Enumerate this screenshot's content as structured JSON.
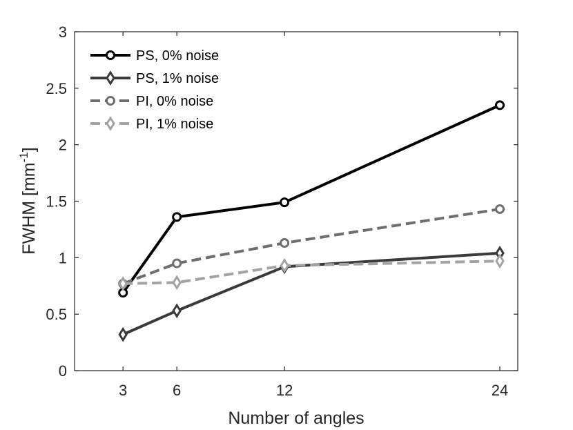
{
  "chart_data": {
    "type": "line",
    "x": [
      3,
      6,
      12,
      24
    ],
    "xlabel": "Number of angles",
    "ylabel": "FWHM [mm",
    "ylabel_superscript": "-1",
    "ylabel_suffix": "]",
    "xlim": [
      0.3,
      25
    ],
    "ylim": [
      0,
      3
    ],
    "xticks": [
      3,
      6,
      12,
      24
    ],
    "yticks": [
      0,
      0.5,
      1,
      1.5,
      2,
      2.5,
      3
    ],
    "ytick_labels": [
      "0",
      "0.5",
      "1",
      "1.5",
      "2",
      "2.5",
      "3"
    ],
    "legend_position": "top-left",
    "series": [
      {
        "name": "PS, 0% noise",
        "values": [
          0.69,
          1.36,
          1.49,
          2.35
        ],
        "color": "#000000",
        "dash": "solid",
        "marker": "circle"
      },
      {
        "name": "PS, 1% noise",
        "values": [
          0.32,
          0.53,
          0.92,
          1.04
        ],
        "color": "#3a3a3a",
        "dash": "solid",
        "marker": "diamond"
      },
      {
        "name": "PI, 0% noise",
        "values": [
          0.77,
          0.95,
          1.13,
          1.43
        ],
        "color": "#6e6e6e",
        "dash": "dashed",
        "marker": "circle"
      },
      {
        "name": "PI, 1% noise",
        "values": [
          0.77,
          0.78,
          0.93,
          0.97
        ],
        "color": "#a3a3a3",
        "dash": "dashed",
        "marker": "diamond"
      }
    ]
  }
}
